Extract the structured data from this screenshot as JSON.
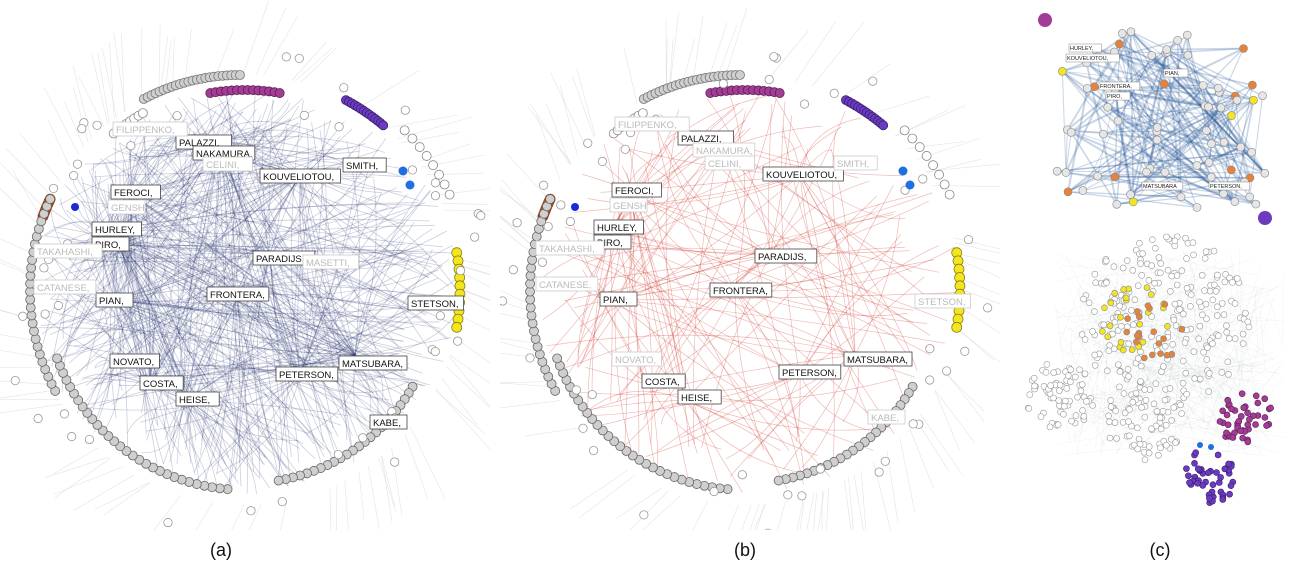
{
  "panels": [
    {
      "caption": "(a)",
      "edge_color": "#1c2a6b",
      "labels_bold": [
        "FEROCI,",
        "HURLEY,",
        "PIRO,",
        "PIAN,",
        "FRONTERA,",
        "KOUVELIOTOU,",
        "PALAZZI,",
        "NAKAMURA,",
        "PARADIJS,",
        "STETSON,",
        "MATSUBARA,",
        "PETERSON,",
        "COSTA,",
        "HEISE,",
        "NOVATO,",
        "SMITH,",
        "KABE,"
      ],
      "labels_faint": [
        "FILIPPENKO,",
        "TAKAHASHI,",
        "CATANESE,",
        "GENSH",
        "MASETTI,",
        "CELINI,"
      ]
    },
    {
      "caption": "(b)",
      "edge_color": "#d23a2e",
      "labels_bold": [
        "FEROCI,",
        "HURLEY,",
        "PIRO,",
        "PIAN,",
        "FRONTERA,",
        "KOUVELIOTOU,",
        "PALAZZI,",
        "PARADIJS,",
        "MATSUBARA,",
        "PETERSON,",
        "COSTA,",
        "HEISE,"
      ],
      "labels_faint": [
        "FILIPPENKO,",
        "NAKAMURA,",
        "SMITH,",
        "TAKAHASHI,",
        "CATANESE,",
        "STETSON,",
        "KABE,",
        "NOVATO,",
        "GENSH",
        "CELINI,"
      ]
    },
    {
      "caption": "(c)",
      "labels_top": [
        "HURLEY,",
        "KOUVELIOTOU,",
        "PIAN,",
        "FRONTERA,",
        "PIRO,",
        "MATSUBARA",
        "PETERSON,"
      ]
    }
  ],
  "colors": {
    "orange": "#e0571c",
    "magenta": "#a23d96",
    "purple": "#6b3bbf",
    "yellow": "#f4e61e",
    "blue": "#1f6fe0",
    "darkblue": "#1a2bd6",
    "node_gray": "#cfcfcf"
  }
}
